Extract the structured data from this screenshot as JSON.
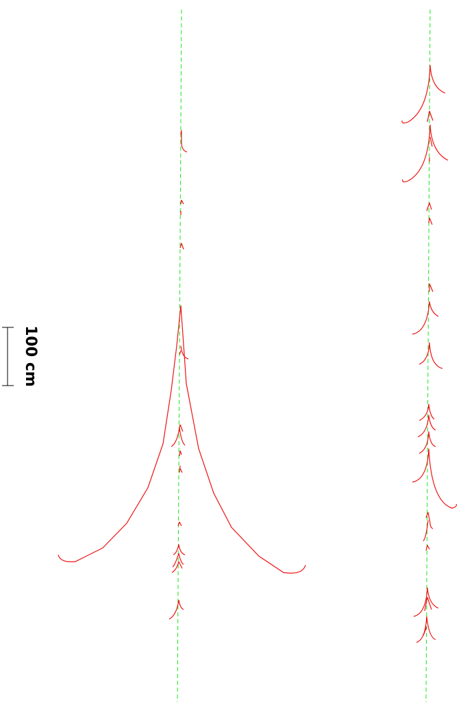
{
  "scale_bar": {
    "label": "100 cm"
  },
  "colors": {
    "axis": "#19e619",
    "branch": "#ee1111",
    "background": "#ffffff",
    "scale": "#000000"
  }
}
